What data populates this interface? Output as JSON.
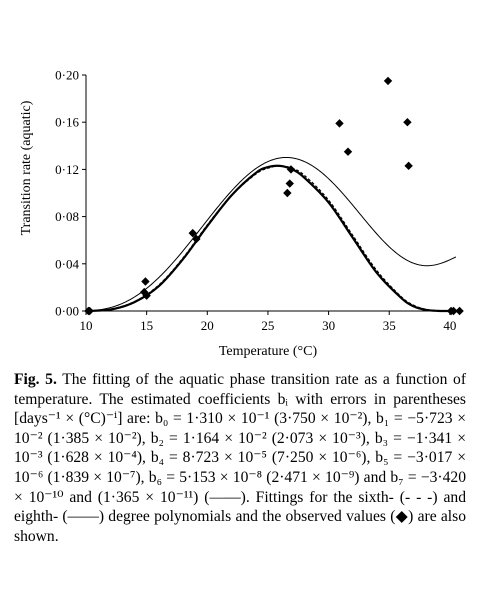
{
  "chart_data": {
    "type": "scatter",
    "title": "",
    "xlabel": "Temperature (°C)",
    "ylabel": "Transition rate (aquatic)",
    "xlim": [
      10,
      41
    ],
    "ylim": [
      0,
      0.2
    ],
    "x_ticks": [
      10,
      15,
      20,
      25,
      30,
      35,
      40
    ],
    "y_ticks": [
      0,
      0.04,
      0.08,
      0.12,
      0.16,
      0.2
    ],
    "x_tick_labels": [
      "10",
      "15",
      "20",
      "25",
      "30",
      "35",
      "40"
    ],
    "y_tick_labels": [
      "0·00",
      "0·04",
      "0·08",
      "0·12",
      "0·16",
      "0·20"
    ],
    "grid": false,
    "legend": "none",
    "observed": {
      "marker": "diamond",
      "points": [
        {
          "x": 10.2,
          "y": 0.0
        },
        {
          "x": 10.3,
          "y": 0.0
        },
        {
          "x": 14.8,
          "y": 0.016
        },
        {
          "x": 14.9,
          "y": 0.025
        },
        {
          "x": 15.0,
          "y": 0.013
        },
        {
          "x": 18.8,
          "y": 0.066
        },
        {
          "x": 19.1,
          "y": 0.061
        },
        {
          "x": 26.6,
          "y": 0.1
        },
        {
          "x": 26.8,
          "y": 0.108
        },
        {
          "x": 26.9,
          "y": 0.12
        },
        {
          "x": 30.9,
          "y": 0.159
        },
        {
          "x": 31.6,
          "y": 0.135
        },
        {
          "x": 34.9,
          "y": 0.195
        },
        {
          "x": 36.5,
          "y": 0.16
        },
        {
          "x": 36.6,
          "y": 0.123
        },
        {
          "x": 40.1,
          "y": 0.0
        },
        {
          "x": 40.3,
          "y": 0.0
        },
        {
          "x": 40.8,
          "y": 0.0
        }
      ]
    },
    "fits": [
      {
        "degree": 7,
        "style": "solid-thin",
        "coefficients": [
          0.131,
          -0.05723,
          0.01164,
          -0.001341,
          8.723e-05,
          -3.017e-06,
          5.153e-08,
          -3.42e-10
        ]
      },
      {
        "degree": 6,
        "style": "dashed",
        "x": [
          10,
          12,
          14,
          16,
          18,
          20,
          22,
          24,
          25,
          26,
          27,
          28,
          30,
          32,
          34,
          36,
          37,
          38,
          39,
          40,
          41
        ],
        "y": [
          0.0,
          0.0015,
          0.008,
          0.022,
          0.045,
          0.073,
          0.098,
          0.116,
          0.121,
          0.123,
          0.121,
          0.115,
          0.094,
          0.064,
          0.034,
          0.012,
          0.005,
          0.0015,
          0.0002,
          0.0,
          0.0
        ]
      },
      {
        "degree": 8,
        "style": "solid-thick",
        "x": [
          10,
          12,
          14,
          16,
          18,
          20,
          22,
          24,
          25,
          26,
          27,
          28,
          30,
          32,
          34,
          36,
          37,
          38,
          39,
          40,
          41
        ],
        "y": [
          0.0,
          0.0012,
          0.0075,
          0.021,
          0.044,
          0.072,
          0.098,
          0.117,
          0.122,
          0.123,
          0.12,
          0.113,
          0.092,
          0.062,
          0.032,
          0.011,
          0.004,
          0.001,
          0.0001,
          0.0,
          0.0
        ]
      }
    ]
  },
  "caption": {
    "fig_label": "Fig. 5.",
    "body": "The fitting of the aquatic phase transition rate as a function of temperature. The estimated coefficients bᵢ with errors in parentheses [days⁻¹ × (°C)⁻ⁱ] are: b₀ = 1·310 × 10⁻¹ (3·750 × 10⁻²), b₁ = −5·723 × 10⁻² (1·385 × 10⁻²), b₂ = 1·164 × 10⁻² (2·073 × 10⁻³), b₃ = −1·341 × 10⁻³ (1·628 × 10⁻⁴), b₄ = 8·723 × 10⁻⁵ (7·250 × 10⁻⁶), b₅ = −3·017 × 10⁻⁶ (1·839 × 10⁻⁷), b₆ = 5·153 × 10⁻⁸ (2·471 × 10⁻⁹) and b₇ = −3·420 × 10⁻¹⁰ and (1·365 × 10⁻¹¹) (——). Fittings for the sixth- (- - -) and eighth- (——) degree polynomials and the observed values (◆) are also shown."
  }
}
